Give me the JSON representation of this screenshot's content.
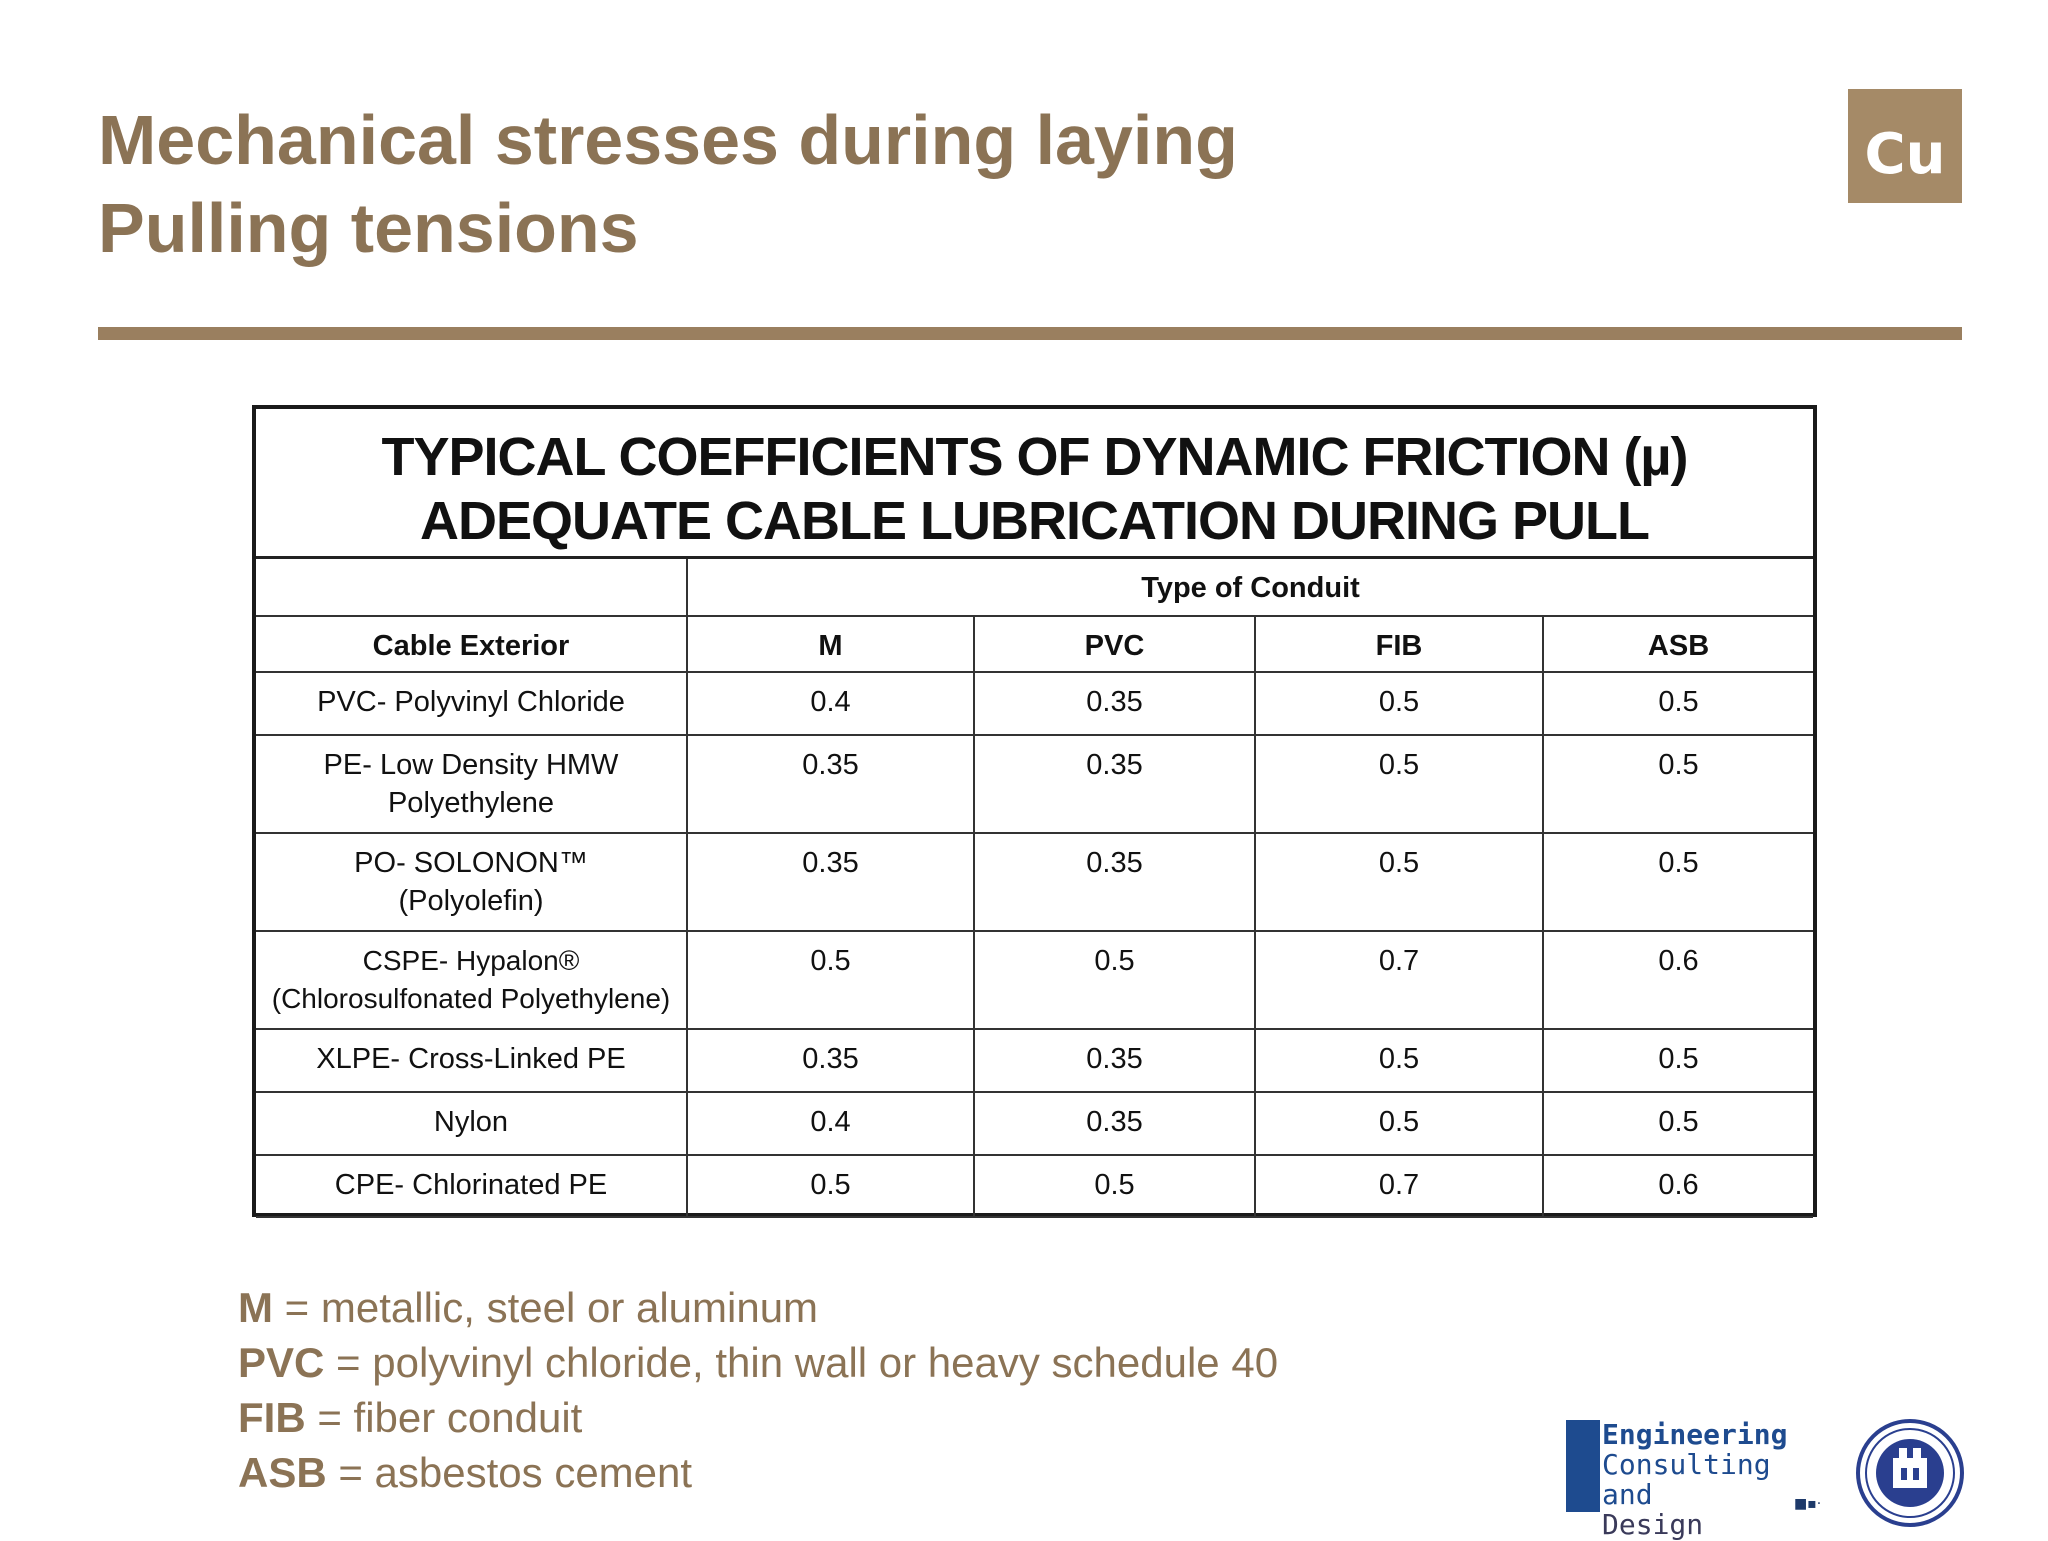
{
  "slide": {
    "title_lines": [
      "Mechanical stresses during laying",
      "Pulling tensions"
    ],
    "corner_logo_text": "Cu"
  },
  "table": {
    "heading_lines": [
      "TYPICAL COEFFICIENTS OF DYNAMIC FRICTION (µ)",
      "ADEQUATE CABLE LUBRICATION DURING PULL"
    ],
    "group_header": "Type of Conduit",
    "columns": [
      "Cable Exterior",
      "M",
      "PVC",
      "FIB",
      "ASB"
    ],
    "rows": [
      {
        "exterior": [
          "PVC- Polyvinyl Chloride"
        ],
        "values": [
          "0.4",
          "0.35",
          "0.5",
          "0.5"
        ]
      },
      {
        "exterior": [
          "PE- Low Density HMW",
          "Polyethylene"
        ],
        "values": [
          "0.35",
          "0.35",
          "0.5",
          "0.5"
        ]
      },
      {
        "exterior": [
          "PO- SOLONON™",
          "(Polyolefin)"
        ],
        "values": [
          "0.35",
          "0.35",
          "0.5",
          "0.5"
        ]
      },
      {
        "exterior": [
          "CSPE- Hypalon®",
          "(Chlorosulfonated Polyethylene)"
        ],
        "values": [
          "0.5",
          "0.5",
          "0.7",
          "0.6"
        ]
      },
      {
        "exterior": [
          "XLPE- Cross-Linked PE"
        ],
        "values": [
          "0.35",
          "0.35",
          "0.5",
          "0.5"
        ]
      },
      {
        "exterior": [
          "Nylon"
        ],
        "values": [
          "0.4",
          "0.35",
          "0.5",
          "0.5"
        ]
      },
      {
        "exterior": [
          "CPE- Chlorinated PE"
        ],
        "values": [
          "0.5",
          "0.5",
          "0.7",
          "0.6"
        ]
      }
    ]
  },
  "legend": [
    {
      "abbr": "M",
      "text": " = metallic, steel or aluminum"
    },
    {
      "abbr": "PVC",
      "text": " = polyvinyl chloride, thin wall or heavy schedule 40"
    },
    {
      "abbr": "FIB",
      "text": " = fiber conduit"
    },
    {
      "abbr": "ASB",
      "text": " = asbestos cement"
    }
  ],
  "footer_logo": {
    "lines": [
      "Engineering",
      "Consulting and",
      "Design"
    ]
  },
  "colors": {
    "title": "#8b7355",
    "rule": "#9a7f5f",
    "cu_badge": "#a58a67",
    "ecd_blue": "#1e4b8f"
  }
}
